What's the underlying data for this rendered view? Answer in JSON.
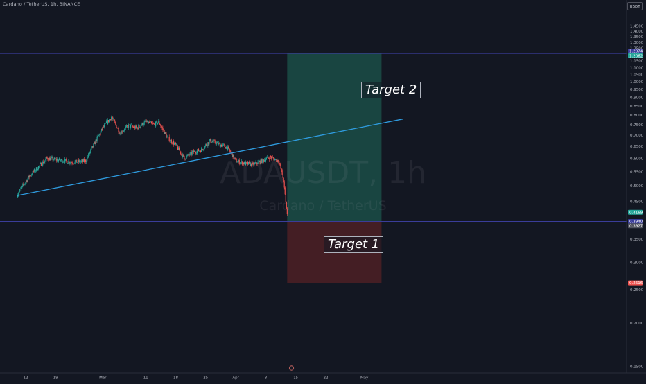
{
  "header": {
    "title": "Cardano / TetherUS, 1h, BINANCE",
    "currency": "USDT"
  },
  "watermark": {
    "symbol": "ADAUSDT, 1h",
    "description": "Cardano / TetherUS"
  },
  "annotations": {
    "target1": "Target 1",
    "target2": "Target 2"
  },
  "colors": {
    "background": "#131722",
    "up_candle": "#26a69a",
    "down_candle": "#ef5350",
    "trendline": "#2f9ce0",
    "horizontal_line": "#3a3d9a",
    "profit_zone": "#1b4d46",
    "loss_zone": "#4a1f25"
  },
  "chart_data": {
    "type": "candlestick",
    "symbol": "ADAUSDT",
    "interval": "1h",
    "exchange": "BINANCE",
    "y_scale": "log",
    "ylim": [
      0.14,
      1.5
    ],
    "price_ticks": [
      "1.4500",
      "1.4000",
      "1.3500",
      "1.3000",
      "1.2500",
      "1.1500",
      "1.1000",
      "1.0500",
      "1.0000",
      "0.9500",
      "0.9000",
      "0.8500",
      "0.8000",
      "0.7500",
      "0.7000",
      "0.6500",
      "0.6000",
      "0.5500",
      "0.5000",
      "0.4500",
      "0.3500",
      "0.3000",
      "0.2500",
      "0.2000",
      "0.1500"
    ],
    "time_ticks": [
      "12",
      "19",
      "Mar",
      "11",
      "18",
      "25",
      "Apr",
      "8",
      "15",
      "22",
      "May"
    ],
    "time_tick_dates": [
      "2024-02-12",
      "2024-02-19",
      "2024-03-01",
      "2024-03-11",
      "2024-03-18",
      "2024-03-25",
      "2024-04-01",
      "2024-04-08",
      "2024-04-15",
      "2024-04-22",
      "2024-05-01"
    ],
    "price_anchors": [
      {
        "date": "2024-02-10",
        "close": 0.47
      },
      {
        "date": "2024-02-13",
        "close": 0.535
      },
      {
        "date": "2024-02-17",
        "close": 0.6
      },
      {
        "date": "2024-02-19",
        "close": 0.595
      },
      {
        "date": "2024-02-23",
        "close": 0.585
      },
      {
        "date": "2024-02-26",
        "close": 0.59
      },
      {
        "date": "2024-02-28",
        "close": 0.66
      },
      {
        "date": "2024-03-01",
        "close": 0.735
      },
      {
        "date": "2024-03-03",
        "close": 0.79
      },
      {
        "date": "2024-03-05",
        "close": 0.71
      },
      {
        "date": "2024-03-07",
        "close": 0.745
      },
      {
        "date": "2024-03-09",
        "close": 0.735
      },
      {
        "date": "2024-03-11",
        "close": 0.765
      },
      {
        "date": "2024-03-13",
        "close": 0.75
      },
      {
        "date": "2024-03-14",
        "close": 0.765
      },
      {
        "date": "2024-03-16",
        "close": 0.69
      },
      {
        "date": "2024-03-18",
        "close": 0.655
      },
      {
        "date": "2024-03-20",
        "close": 0.6
      },
      {
        "date": "2024-03-22",
        "close": 0.625
      },
      {
        "date": "2024-03-24",
        "close": 0.635
      },
      {
        "date": "2024-03-26",
        "close": 0.675
      },
      {
        "date": "2024-03-28",
        "close": 0.66
      },
      {
        "date": "2024-03-30",
        "close": 0.645
      },
      {
        "date": "2024-04-01",
        "close": 0.59
      },
      {
        "date": "2024-04-03",
        "close": 0.58
      },
      {
        "date": "2024-04-05",
        "close": 0.575
      },
      {
        "date": "2024-04-07",
        "close": 0.59
      },
      {
        "date": "2024-04-09",
        "close": 0.605
      },
      {
        "date": "2024-04-11",
        "close": 0.59
      },
      {
        "date": "2024-04-12",
        "close": 0.53
      },
      {
        "date": "2024-04-13",
        "close": 0.41
      }
    ],
    "price_labels": [
      {
        "text": "1.2074",
        "color": "#3a3d9a"
      },
      {
        "text": "1.2062",
        "color": "#26a69a"
      },
      {
        "text": "0.4169",
        "color": "#26a69a"
      },
      {
        "text": "0.3940",
        "color": "#3a3d9a"
      },
      {
        "text": "0.3927",
        "color": "#50535e"
      },
      {
        "text": "0.2616",
        "color": "#ef5350"
      }
    ],
    "horizontal_lines": [
      1.2074,
      0.394
    ],
    "trendline": {
      "start": {
        "date": "2024-02-10",
        "price": 0.468
      },
      "end": {
        "date": "2024-05-10",
        "price": 0.78
      }
    },
    "position": {
      "type": "long",
      "start": "2024-04-13",
      "end": "2024-05-05",
      "entry": 0.394,
      "target": 1.2074,
      "stop": 0.2616
    },
    "targets": [
      {
        "label": "Target 1",
        "price": 0.61
      },
      {
        "label": "Target 2",
        "price": 1.15
      }
    ]
  }
}
